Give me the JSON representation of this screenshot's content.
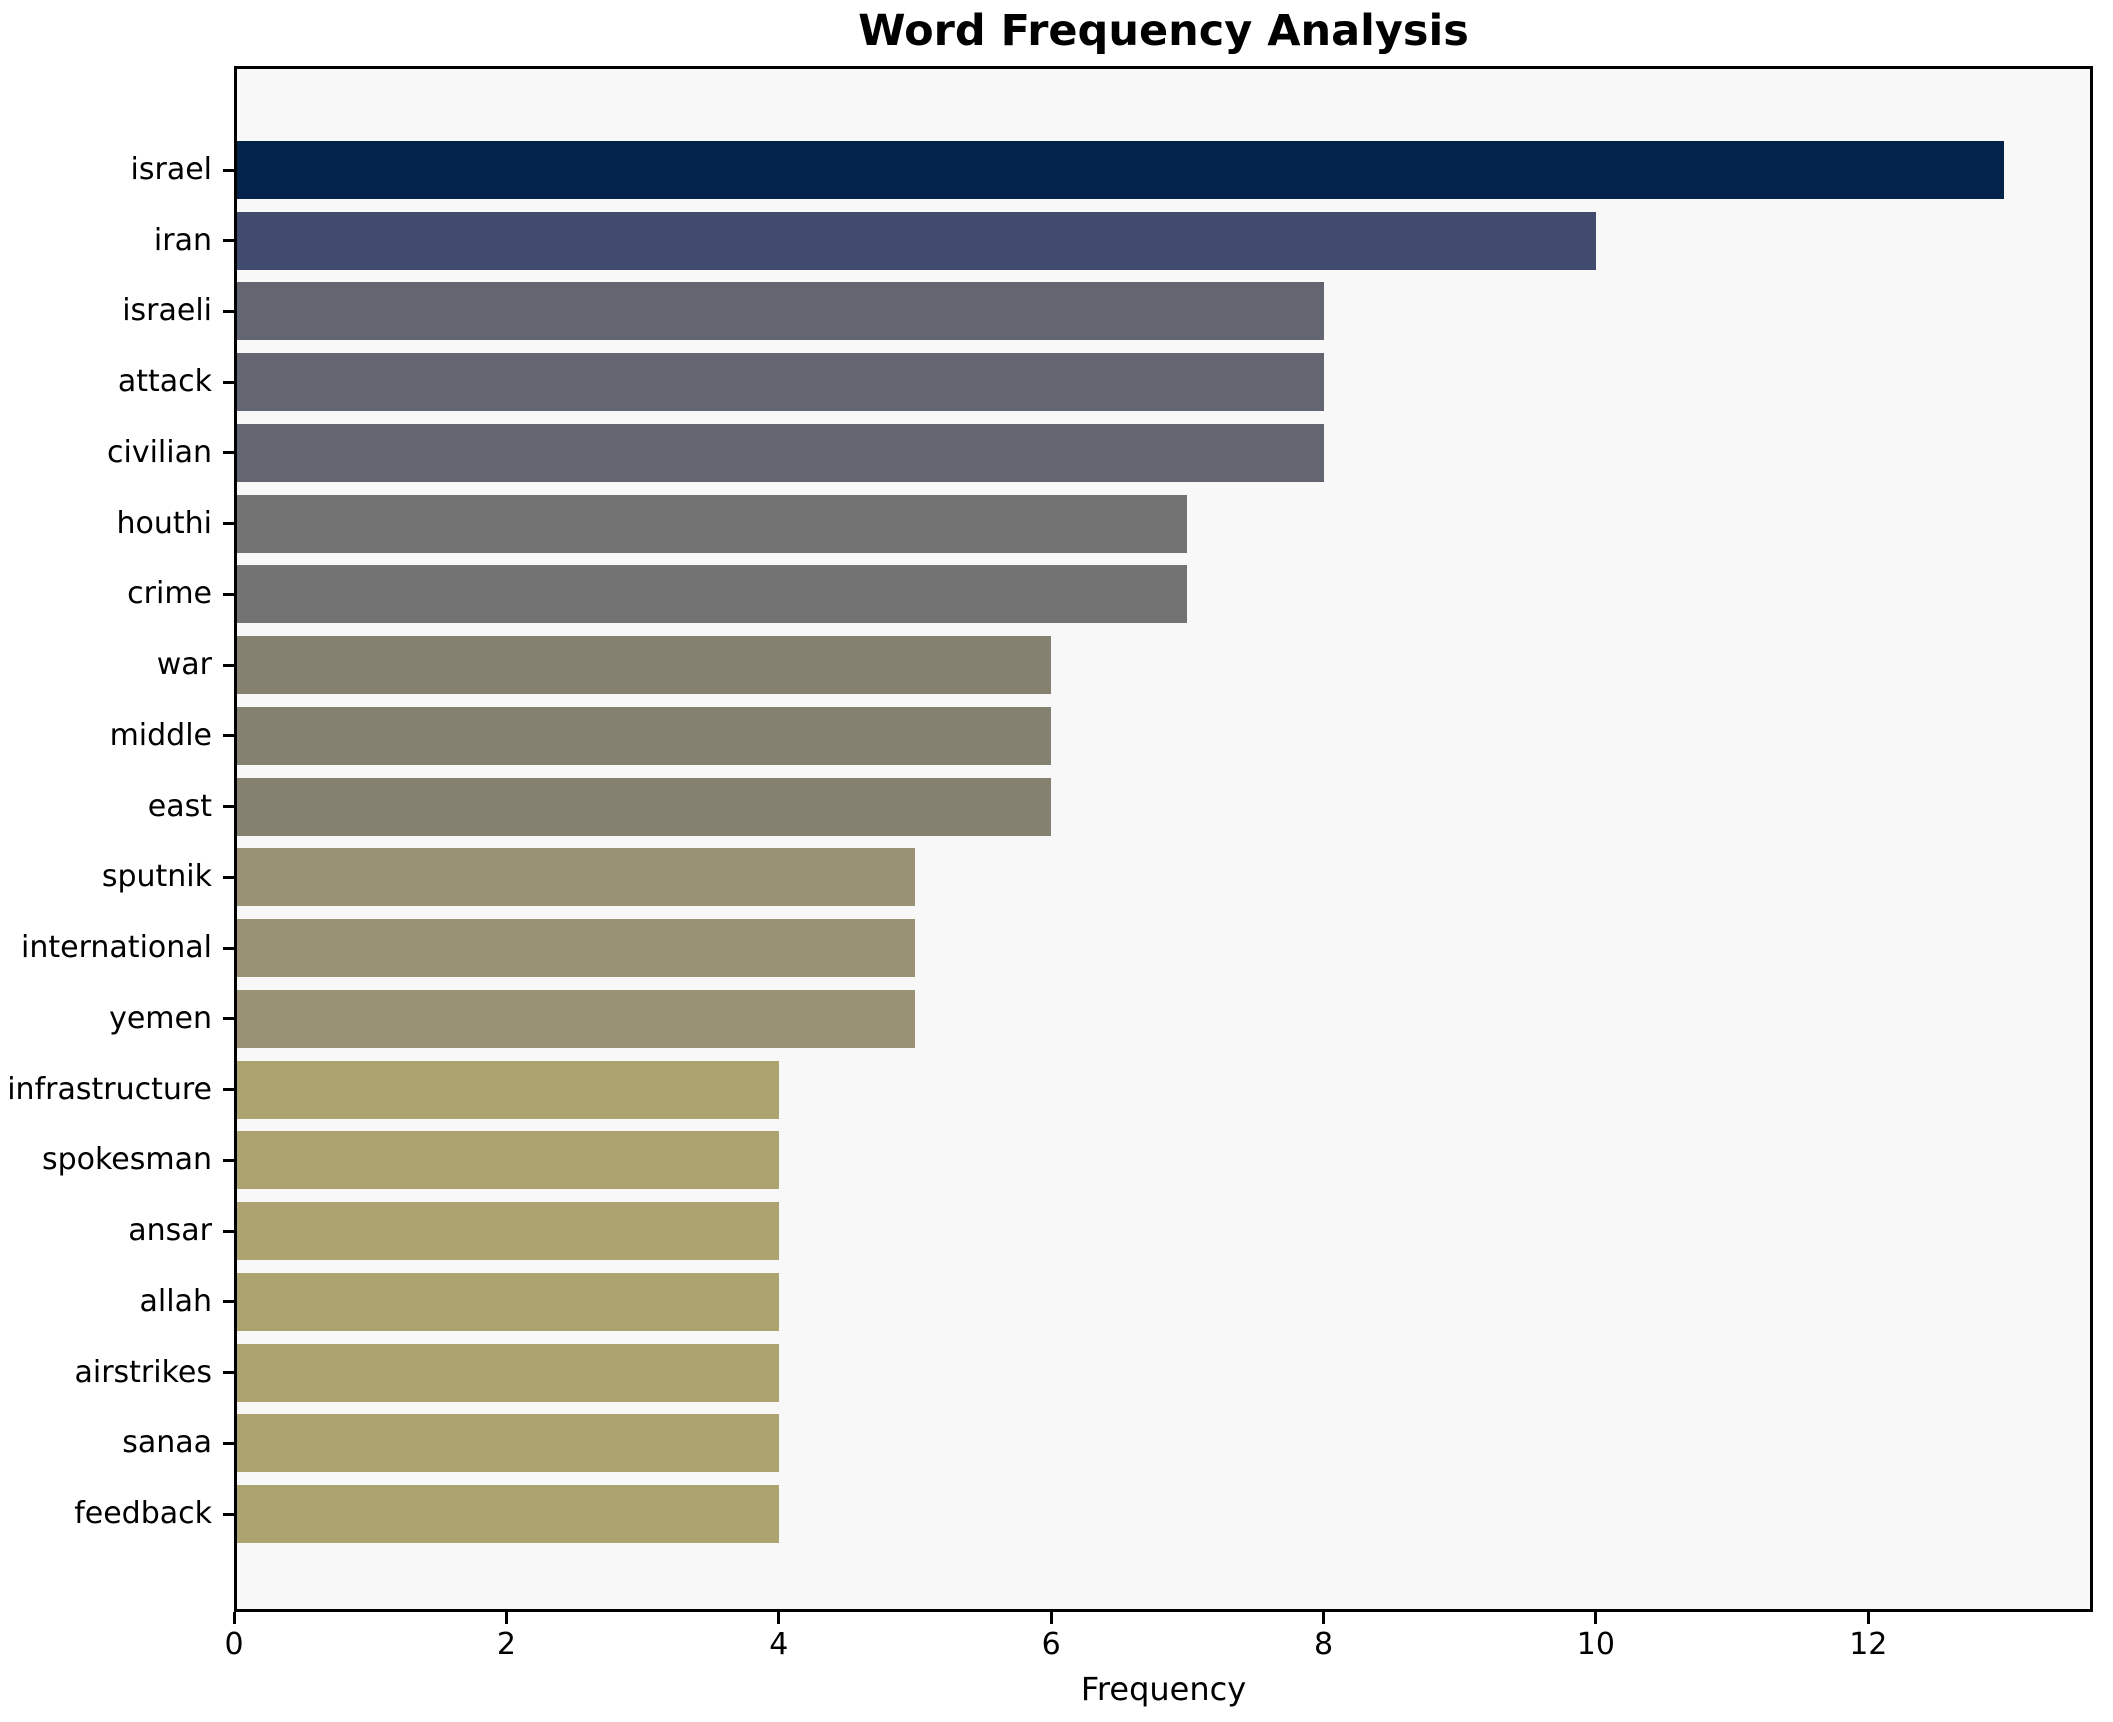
{
  "title": "Word Frequency Analysis",
  "x_axis_label": "Frequency",
  "chart_data": {
    "type": "bar",
    "orientation": "horizontal",
    "title": "Word Frequency Analysis",
    "xlabel": "Frequency",
    "ylabel": "",
    "categories": [
      "israel",
      "iran",
      "israeli",
      "attack",
      "civilian",
      "houthi",
      "crime",
      "war",
      "middle",
      "east",
      "sputnik",
      "international",
      "yemen",
      "infrastructure",
      "spokesman",
      "ansar",
      "allah",
      "airstrikes",
      "sanaa",
      "feedback"
    ],
    "values": [
      13,
      10,
      8,
      8,
      8,
      7,
      7,
      6,
      6,
      6,
      5,
      5,
      5,
      4,
      4,
      4,
      4,
      4,
      4,
      4
    ],
    "bar_colors": [
      "#03234a",
      "#414b6d",
      "#636571",
      "#636571",
      "#636571",
      "#737374",
      "#737374",
      "#858170",
      "#858170",
      "#858170",
      "#999274",
      "#999274",
      "#999274",
      "#aca370",
      "#aca370",
      "#aca370",
      "#aca370",
      "#aca370",
      "#aca370",
      "#aca370"
    ],
    "xlim": [
      0,
      13.65
    ],
    "xticks": [
      0,
      2,
      4,
      6,
      8,
      10,
      12
    ],
    "grid": false,
    "legend": null,
    "plot_background": "#f8f8f8",
    "figure_background": "#ffffff",
    "spine_color": "#000000"
  }
}
